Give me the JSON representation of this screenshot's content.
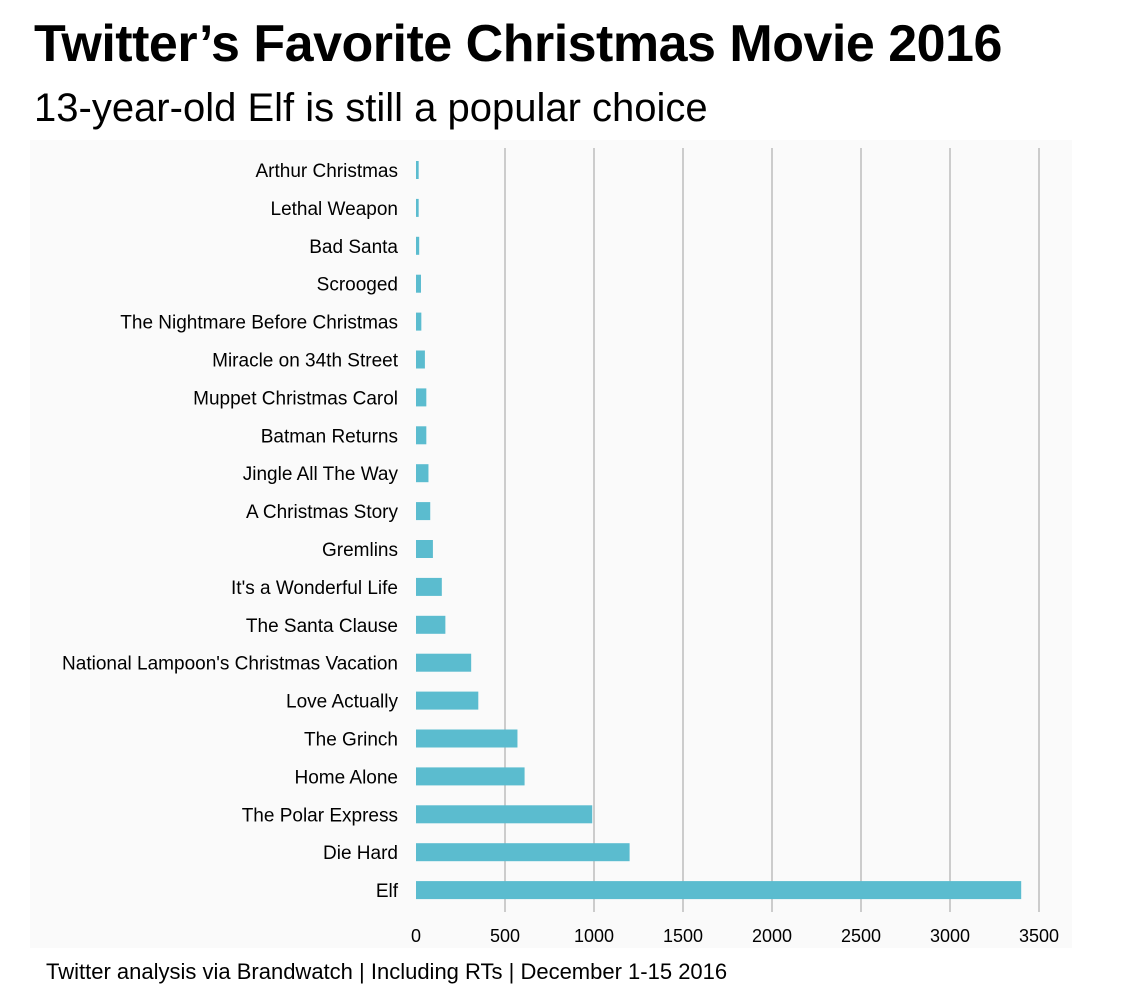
{
  "header": {
    "title": "Twitter’s Favorite Christmas Movie 2016",
    "subtitle": "13-year-old Elf is still a popular choice"
  },
  "footer": {
    "source": "Twitter analysis via Brandwatch | Including RTs | December 1-15 2016"
  },
  "colors": {
    "bar": "#5bbccf",
    "grid": "#9e9e9e",
    "plot_background": "#fafafa"
  },
  "chart_data": {
    "type": "bar",
    "orientation": "horizontal",
    "categories": [
      "Arthur Christmas",
      "Lethal Weapon",
      "Bad Santa",
      "Scrooged",
      "The Nightmare Before Christmas",
      "Miracle on 34th Street",
      "Muppet Christmas Carol",
      "Batman Returns",
      "Jingle All The Way",
      "A Christmas Story",
      "Gremlins",
      "It's a Wonderful Life",
      "The Santa Clause",
      "National Lampoon's Christmas Vacation",
      "Love Actually",
      "The Grinch",
      "Home Alone",
      "The Polar Express",
      "Die Hard",
      "Elf"
    ],
    "values": [
      15,
      15,
      18,
      28,
      30,
      50,
      58,
      58,
      70,
      80,
      95,
      145,
      165,
      310,
      350,
      570,
      610,
      990,
      1200,
      3400
    ],
    "xlim": [
      0,
      3500
    ],
    "xticks": [
      0,
      500,
      1000,
      1500,
      2000,
      2500,
      3000,
      3500
    ],
    "grid": true,
    "legend": "none",
    "xlabel": "",
    "ylabel": ""
  }
}
